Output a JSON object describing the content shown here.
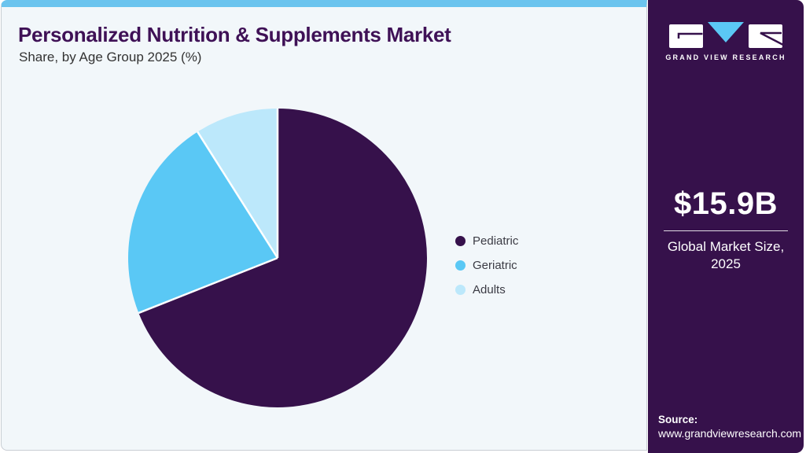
{
  "header": {
    "title": "Personalized Nutrition & Supplements Market",
    "subtitle": "Share, by Age Group 2025 (%)"
  },
  "chart_data": {
    "type": "pie",
    "title": "Personalized Nutrition & Supplements Market Share, by Age Group 2025 (%)",
    "categories": [
      "Pediatric",
      "Geriatric",
      "Adults"
    ],
    "values": [
      69,
      22,
      9
    ],
    "unit": "%",
    "colors": [
      "#36114B",
      "#5AC8F5",
      "#BCE8FB"
    ],
    "start_angle_deg": 0,
    "direction": "clockwise",
    "legend_position": "right",
    "slice_separator_color": "#FFFFFF"
  },
  "sidebar": {
    "logo": {
      "brand": "GRAND VIEW RESEARCH",
      "triangle_color": "#5BC8F5",
      "box_color": "#FFFFFF"
    },
    "market_size": {
      "value": "$15.9B",
      "label_line1": "Global Market Size,",
      "label_line2": "2025"
    },
    "source": {
      "label": "Source:",
      "url": "www.grandviewresearch.com"
    }
  },
  "theme": {
    "top_strip_color": "#6BC4EE",
    "card_background": "#F2F7FA",
    "card_border": "#C9CED4",
    "sidebar_background": "#36114B",
    "title_color": "#3F1156",
    "subtitle_color": "#333333",
    "legend_text_color": "#3B3B44"
  }
}
